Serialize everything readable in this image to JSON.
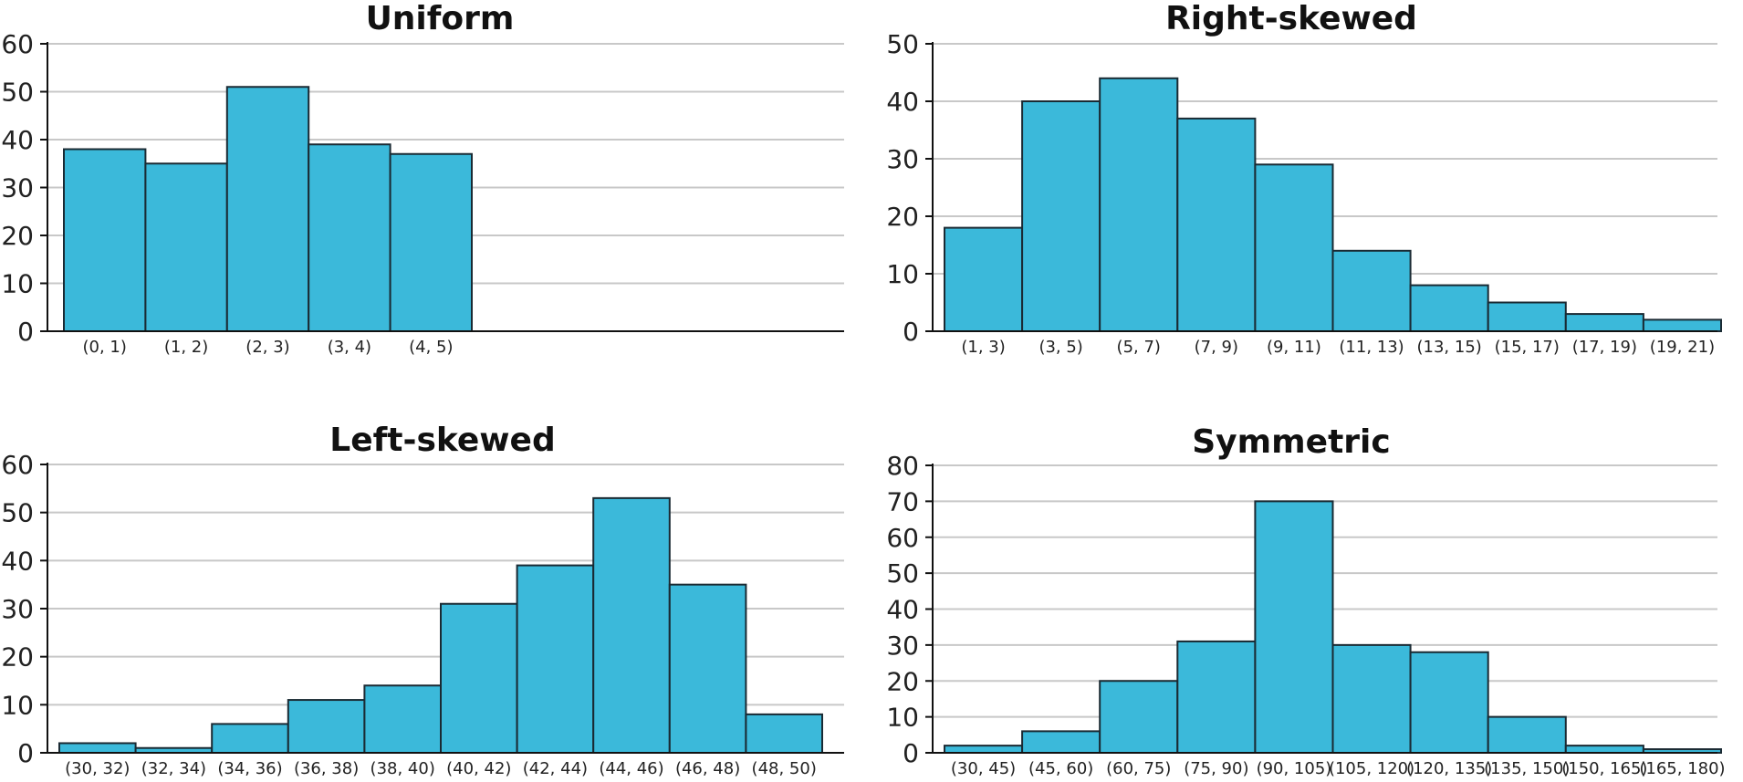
{
  "chart_data": [
    {
      "type": "bar",
      "title": "Uniform",
      "ylim": [
        0,
        60
      ],
      "yticks": [
        "0",
        "10",
        "20",
        "30",
        "40",
        "50",
        "60"
      ],
      "categories": [
        "(0, 1)",
        "(1, 2)",
        "(2, 3)",
        "(3, 4)",
        "(4, 5)"
      ],
      "values": [
        38,
        35,
        51,
        39,
        37
      ],
      "grid": true,
      "bar_color": "#3bb9da"
    },
    {
      "type": "bar",
      "title": "Right-skewed",
      "ylim": [
        0,
        50
      ],
      "yticks": [
        "0",
        "10",
        "20",
        "30",
        "40",
        "50"
      ],
      "categories": [
        "(1, 3)",
        "(3, 5)",
        "(5, 7)",
        "(7, 9)",
        "(9, 11)",
        "(11, 13)",
        "(13, 15)",
        "(15, 17)",
        "(17, 19)",
        "(19, 21)"
      ],
      "values": [
        18,
        40,
        44,
        37,
        29,
        14,
        8,
        5,
        3,
        2
      ],
      "grid": true,
      "bar_color": "#3bb9da"
    },
    {
      "type": "bar",
      "title": "Left-skewed",
      "ylim": [
        0,
        60
      ],
      "yticks": [
        "0",
        "10",
        "20",
        "30",
        "40",
        "50",
        "60"
      ],
      "categories": [
        "(30, 32)",
        "(32, 34)",
        "(34, 36)",
        "(36, 38)",
        "(38, 40)",
        "(40, 42)",
        "(42, 44)",
        "(44, 46)",
        "(46, 48)",
        "(48, 50)"
      ],
      "values": [
        2,
        1,
        6,
        11,
        14,
        31,
        39,
        53,
        35,
        8
      ],
      "grid": true,
      "bar_color": "#3bb9da"
    },
    {
      "type": "bar",
      "title": "Symmetric",
      "ylim": [
        0,
        80
      ],
      "yticks": [
        "0",
        "10",
        "20",
        "30",
        "40",
        "50",
        "60",
        "70",
        "80"
      ],
      "categories": [
        "(30, 45)",
        "(45, 60)",
        "(60, 75)",
        "(75, 90)",
        "(90, 105)",
        "(105, 120)",
        "(120, 135)",
        "(135, 150)",
        "(150, 165)",
        "(165, 180)"
      ],
      "values": [
        2,
        6,
        20,
        31,
        70,
        30,
        28,
        10,
        2,
        1
      ],
      "grid": true,
      "bar_color": "#3bb9da"
    }
  ]
}
